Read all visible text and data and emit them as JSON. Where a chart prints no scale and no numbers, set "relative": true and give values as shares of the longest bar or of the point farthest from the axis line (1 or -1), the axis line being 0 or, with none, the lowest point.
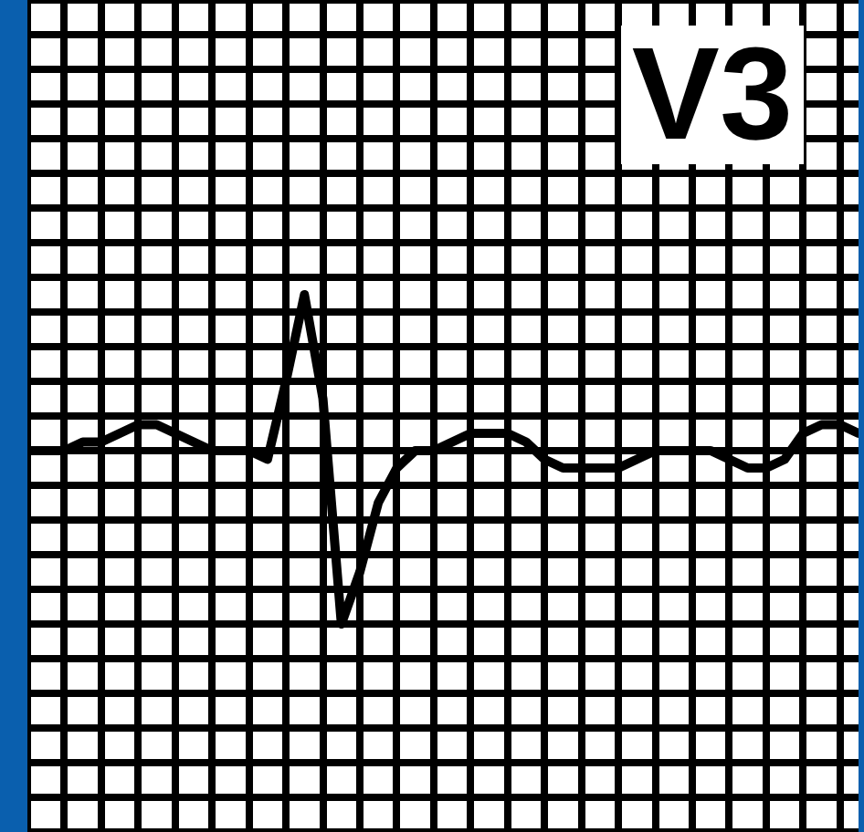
{
  "chart_data": {
    "type": "line",
    "title": "V3",
    "relative": true,
    "grid": true,
    "legend": false,
    "marker": "none",
    "line_style": "solid",
    "categories": [
      null,
      null,
      null,
      null,
      null,
      null,
      null,
      null,
      null,
      null,
      null,
      null,
      null,
      null,
      null,
      null,
      null,
      null,
      null,
      null,
      null,
      null,
      null,
      null,
      null,
      null,
      null,
      null,
      null,
      null,
      null,
      null,
      null,
      null,
      null,
      null,
      null,
      null,
      null,
      null,
      null,
      null,
      null,
      null,
      null,
      null
    ],
    "series": [
      {
        "color": "#000000",
        "values": [
          0,
          0,
          0,
          0.05,
          0.05,
          0.1,
          0.15,
          0.15,
          0.1,
          0.05,
          0,
          0,
          0,
          -0.05,
          0.4,
          0.9,
          0.3,
          -1,
          -0.7,
          -0.3,
          -0.1,
          0,
          0,
          0.05,
          0.1,
          0.1,
          0.1,
          0.05,
          -0.05,
          -0.1,
          -0.1,
          -0.1,
          -0.1,
          -0.05,
          0,
          0,
          0,
          0,
          -0.05,
          -0.1,
          -0.1,
          -0.05,
          0.1,
          0.15,
          0.15,
          0.1
        ]
      }
    ]
  }
}
